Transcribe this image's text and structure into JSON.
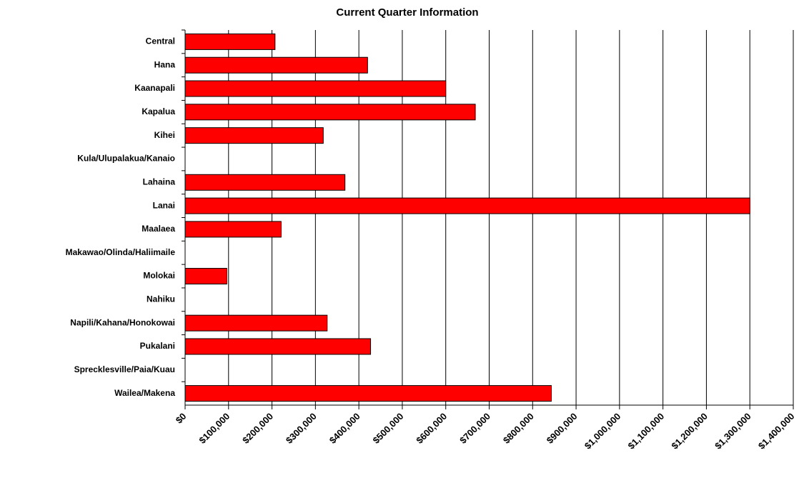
{
  "chart_data": {
    "type": "bar",
    "orientation": "horizontal",
    "title": "Current Quarter Information",
    "categories": [
      "Central",
      "Hana",
      "Kaanapali",
      "Kapalua",
      "Kihei",
      "Kula/Ulupalakua/Kanaio",
      "Lahaina",
      "Lanai",
      "Maalaea",
      "Makawao/Olinda/Haliimaile",
      "Molokai",
      "Nahiku",
      "Napili/Kahana/Honokowai",
      "Pukalani",
      "Sprecklesville/Paia/Kuau",
      "Wailea/Makena"
    ],
    "values": [
      207000,
      420000,
      600000,
      668000,
      318000,
      null,
      368000,
      1300000,
      221000,
      null,
      96000,
      null,
      327000,
      427000,
      null,
      843000
    ],
    "color": "#ff0000",
    "xlim": [
      0,
      1400000
    ],
    "xticks": [
      {
        "value": 0,
        "label": "$0"
      },
      {
        "value": 100000,
        "label": "$100,000"
      },
      {
        "value": 200000,
        "label": "$200,000"
      },
      {
        "value": 300000,
        "label": "$300,000"
      },
      {
        "value": 400000,
        "label": "$400,000"
      },
      {
        "value": 500000,
        "label": "$500,000"
      },
      {
        "value": 600000,
        "label": "$600,000"
      },
      {
        "value": 700000,
        "label": "$700,000"
      },
      {
        "value": 800000,
        "label": "$800,000"
      },
      {
        "value": 900000,
        "label": "$900,000"
      },
      {
        "value": 1000000,
        "label": "$1,000,000"
      },
      {
        "value": 1100000,
        "label": "$1,100,000"
      },
      {
        "value": 1200000,
        "label": "$1,200,000"
      },
      {
        "value": 1300000,
        "label": "$1,300,000"
      },
      {
        "value": 1400000,
        "label": "$1,400,000"
      }
    ],
    "grid": true
  }
}
